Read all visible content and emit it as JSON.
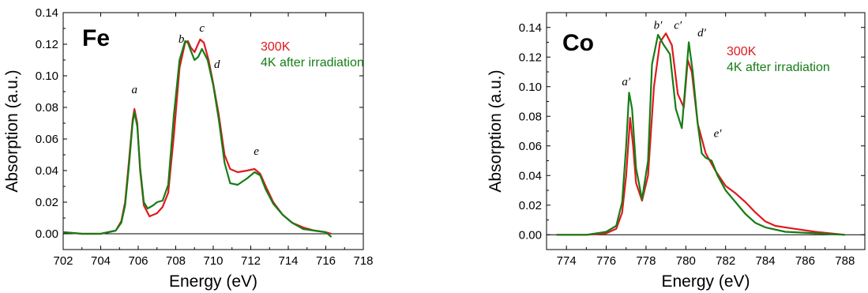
{
  "chart_data": [
    {
      "type": "line",
      "panel_label": "Fe",
      "xlabel": "Energy (eV)",
      "ylabel": "Absorption (a.u.)",
      "xlim": [
        702,
        718
      ],
      "ylim": [
        -0.01,
        0.14
      ],
      "xticks": [
        702,
        704,
        706,
        708,
        710,
        712,
        714,
        716,
        718
      ],
      "yticks": [
        0.0,
        0.02,
        0.04,
        0.06,
        0.08,
        0.1,
        0.12,
        0.14
      ],
      "ytick_labels": [
        "0.00",
        "0.02",
        "0.04",
        "0.06",
        "0.08",
        "0.10",
        "0.12",
        "0.14"
      ],
      "zero_line": true,
      "legend": {
        "placement": "top-right",
        "entries": [
          "300K",
          "4K after irradiation"
        ]
      },
      "annotations": [
        {
          "text": "a",
          "x": 705.8,
          "y": 0.089
        },
        {
          "text": "b",
          "x": 708.3,
          "y": 0.121
        },
        {
          "text": "c",
          "x": 709.4,
          "y": 0.128
        },
        {
          "text": "d",
          "x": 710.2,
          "y": 0.105
        },
        {
          "text": "e",
          "x": 712.3,
          "y": 0.05
        }
      ],
      "series": [
        {
          "name": "300K",
          "color": "#e0191d",
          "x": [
            702.0,
            703.0,
            704.0,
            704.8,
            705.1,
            705.3,
            705.5,
            705.7,
            705.8,
            705.95,
            706.1,
            706.3,
            706.6,
            707.0,
            707.3,
            707.6,
            707.9,
            708.2,
            708.5,
            708.65,
            708.8,
            709.0,
            709.3,
            709.5,
            709.75,
            710.0,
            710.3,
            710.6,
            710.9,
            711.3,
            711.8,
            712.2,
            712.5,
            712.8,
            713.2,
            713.7,
            714.2,
            714.8,
            715.4,
            716.0,
            716.3
          ],
          "y": [
            0.001,
            0.0,
            0.0,
            0.002,
            0.008,
            0.02,
            0.045,
            0.072,
            0.079,
            0.07,
            0.04,
            0.018,
            0.011,
            0.013,
            0.017,
            0.026,
            0.062,
            0.105,
            0.121,
            0.122,
            0.118,
            0.115,
            0.123,
            0.121,
            0.11,
            0.095,
            0.075,
            0.05,
            0.041,
            0.039,
            0.04,
            0.041,
            0.038,
            0.03,
            0.02,
            0.012,
            0.007,
            0.004,
            0.002,
            0.001,
            0.0
          ]
        },
        {
          "name": "4K after irradiation",
          "color": "#167d16",
          "x": [
            702.0,
            703.0,
            704.0,
            704.8,
            705.1,
            705.3,
            705.5,
            705.7,
            705.8,
            705.95,
            706.1,
            706.3,
            706.5,
            706.8,
            707.0,
            707.3,
            707.6,
            707.9,
            708.2,
            708.5,
            708.65,
            708.8,
            709.0,
            709.2,
            709.4,
            709.7,
            710.0,
            710.3,
            710.6,
            710.9,
            711.3,
            711.8,
            712.2,
            712.5,
            712.8,
            713.2,
            713.7,
            714.2,
            714.8,
            715.4,
            716.0,
            716.3
          ],
          "y": [
            0.001,
            0.0,
            0.0,
            0.002,
            0.007,
            0.018,
            0.042,
            0.07,
            0.077,
            0.068,
            0.042,
            0.02,
            0.016,
            0.018,
            0.02,
            0.021,
            0.031,
            0.075,
            0.11,
            0.122,
            0.121,
            0.116,
            0.11,
            0.112,
            0.117,
            0.11,
            0.094,
            0.072,
            0.045,
            0.032,
            0.031,
            0.035,
            0.039,
            0.037,
            0.028,
            0.019,
            0.012,
            0.007,
            0.003,
            0.002,
            0.001,
            -0.002
          ]
        }
      ]
    },
    {
      "type": "line",
      "panel_label": "Co",
      "xlabel": "Energy (eV)",
      "ylabel": "Absorption (a.u.)",
      "xlim": [
        773,
        789
      ],
      "ylim": [
        -0.01,
        0.15
      ],
      "xticks": [
        774,
        776,
        778,
        780,
        782,
        784,
        786,
        788
      ],
      "yticks": [
        0.0,
        0.02,
        0.04,
        0.06,
        0.08,
        0.1,
        0.12,
        0.14
      ],
      "ytick_labels": [
        "0.00",
        "0.02",
        "0.04",
        "0.06",
        "0.08",
        "0.10",
        "0.12",
        "0.14"
      ],
      "zero_line": true,
      "legend": {
        "placement": "top-right",
        "entries": [
          "300K",
          "4K after irradiation"
        ]
      },
      "annotations": [
        {
          "text": "a′",
          "x": 777.0,
          "y": 0.101
        },
        {
          "text": "b′",
          "x": 778.6,
          "y": 0.139
        },
        {
          "text": "c′",
          "x": 779.6,
          "y": 0.139
        },
        {
          "text": "d′",
          "x": 780.8,
          "y": 0.134
        },
        {
          "text": "e′",
          "x": 781.6,
          "y": 0.066
        }
      ],
      "series": [
        {
          "name": "300K",
          "color": "#e0191d",
          "x": [
            773.5,
            775.0,
            776.0,
            776.5,
            776.8,
            777.0,
            777.2,
            777.35,
            777.5,
            777.8,
            778.1,
            778.4,
            778.7,
            779.0,
            779.3,
            779.6,
            779.9,
            780.1,
            780.3,
            780.6,
            781.0,
            781.5,
            782.0,
            782.5,
            783.0,
            783.5,
            784.0,
            784.5,
            785.5,
            786.5,
            788.0
          ],
          "y": [
            0.0,
            0.0,
            0.001,
            0.004,
            0.015,
            0.04,
            0.079,
            0.06,
            0.035,
            0.023,
            0.04,
            0.1,
            0.13,
            0.136,
            0.128,
            0.095,
            0.086,
            0.118,
            0.11,
            0.075,
            0.055,
            0.043,
            0.033,
            0.028,
            0.022,
            0.015,
            0.009,
            0.006,
            0.004,
            0.002,
            0.0
          ]
        },
        {
          "name": "4K after irradiation",
          "color": "#167d16",
          "x": [
            773.5,
            775.0,
            776.0,
            776.5,
            776.8,
            777.0,
            777.15,
            777.3,
            777.5,
            777.8,
            778.1,
            778.3,
            778.6,
            778.9,
            779.2,
            779.5,
            779.8,
            780.0,
            780.15,
            780.35,
            780.6,
            780.8,
            781.0,
            781.3,
            781.6,
            782.0,
            782.5,
            783.0,
            783.5,
            784.0,
            785.0,
            786.5,
            788.0
          ],
          "y": [
            0.0,
            0.0,
            0.002,
            0.006,
            0.022,
            0.06,
            0.096,
            0.085,
            0.045,
            0.024,
            0.05,
            0.115,
            0.135,
            0.128,
            0.122,
            0.085,
            0.072,
            0.105,
            0.13,
            0.11,
            0.075,
            0.055,
            0.052,
            0.05,
            0.04,
            0.03,
            0.022,
            0.014,
            0.008,
            0.005,
            0.002,
            0.001,
            0.0
          ]
        }
      ]
    }
  ]
}
